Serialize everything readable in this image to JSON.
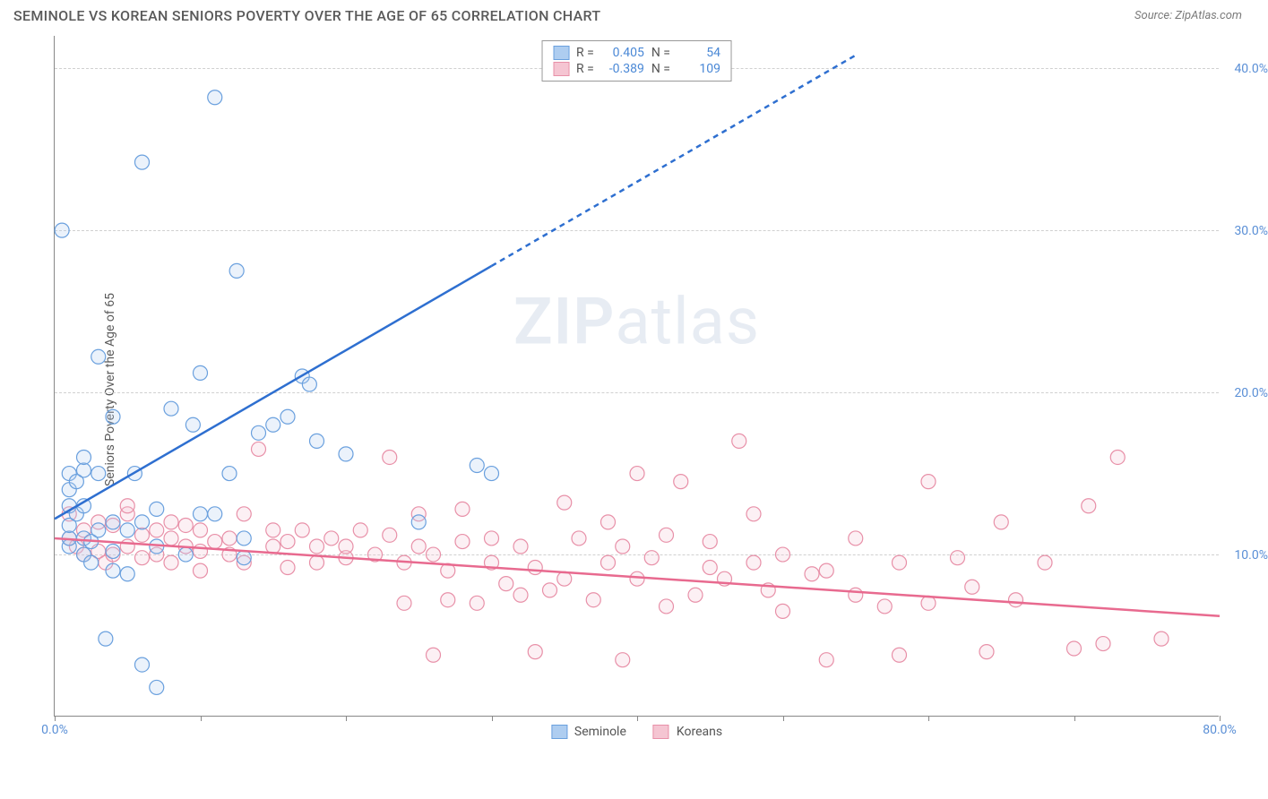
{
  "header": {
    "title": "SEMINOLE VS KOREAN SENIORS POVERTY OVER THE AGE OF 65 CORRELATION CHART",
    "source": "Source: ZipAtlas.com"
  },
  "chart": {
    "type": "scatter",
    "y_axis_label": "Seniors Poverty Over the Age of 65",
    "xlim": [
      0,
      80
    ],
    "ylim": [
      0,
      42
    ],
    "x_ticks": [
      0,
      10,
      20,
      30,
      40,
      50,
      60,
      70,
      80
    ],
    "x_tick_labels": {
      "0": "0.0%",
      "80": "80.0%"
    },
    "y_gridlines": [
      10,
      20,
      30,
      40
    ],
    "y_tick_labels": {
      "10": "10.0%",
      "20": "20.0%",
      "30": "30.0%",
      "40": "40.0%"
    },
    "background_color": "#ffffff",
    "grid_color": "#d0d0d0",
    "axis_color": "#888888",
    "label_color": "#5a5a5a",
    "tick_label_color": "#5a8fd6",
    "marker_radius": 8,
    "marker_stroke_width": 1.2,
    "marker_fill_opacity": 0.25,
    "watermark": "ZIPatlas"
  },
  "series": {
    "seminole": {
      "label": "Seminole",
      "color_stroke": "#6aa0de",
      "color_fill": "#aecdf0",
      "trend_color": "#2e6fd0",
      "trend_width": 2.5,
      "trend_start": [
        0,
        12.2
      ],
      "trend_solid_end": [
        30,
        27.8
      ],
      "trend_dash_end": [
        55,
        40.8
      ],
      "stats": {
        "R": "0.405",
        "N": "54"
      },
      "points": [
        [
          0.5,
          30.0
        ],
        [
          1,
          10.5
        ],
        [
          1,
          11
        ],
        [
          1,
          11.8
        ],
        [
          1,
          14
        ],
        [
          1,
          15
        ],
        [
          1,
          13
        ],
        [
          1.5,
          12.5
        ],
        [
          1.5,
          14.5
        ],
        [
          2,
          10
        ],
        [
          2,
          11
        ],
        [
          2,
          13
        ],
        [
          2,
          15.2
        ],
        [
          2,
          16
        ],
        [
          2.5,
          9.5
        ],
        [
          2.5,
          10.8
        ],
        [
          3,
          11.5
        ],
        [
          3,
          15
        ],
        [
          3,
          22.2
        ],
        [
          3.5,
          4.8
        ],
        [
          4,
          9
        ],
        [
          4,
          10.2
        ],
        [
          4,
          12
        ],
        [
          4,
          18.5
        ],
        [
          5,
          8.8
        ],
        [
          5,
          11.5
        ],
        [
          5.5,
          15
        ],
        [
          6,
          3.2
        ],
        [
          6,
          12
        ],
        [
          6,
          34.2
        ],
        [
          7,
          1.8
        ],
        [
          7,
          10.5
        ],
        [
          7,
          12.8
        ],
        [
          8,
          19
        ],
        [
          9,
          10
        ],
        [
          9.5,
          18
        ],
        [
          10,
          12.5
        ],
        [
          10,
          21.2
        ],
        [
          11,
          12.5
        ],
        [
          11,
          38.2
        ],
        [
          12,
          15
        ],
        [
          12.5,
          27.5
        ],
        [
          13,
          9.8
        ],
        [
          13,
          11
        ],
        [
          14,
          17.5
        ],
        [
          15,
          18
        ],
        [
          16,
          18.5
        ],
        [
          17,
          21
        ],
        [
          17.5,
          20.5
        ],
        [
          18,
          17
        ],
        [
          20,
          16.2
        ],
        [
          25,
          12
        ],
        [
          29,
          15.5
        ],
        [
          30,
          15
        ]
      ]
    },
    "koreans": {
      "label": "Koreans",
      "color_stroke": "#e890a8",
      "color_fill": "#f5c5d2",
      "trend_color": "#e86a8f",
      "trend_width": 2.5,
      "trend_start": [
        0,
        11.0
      ],
      "trend_end": [
        80,
        6.2
      ],
      "stats": {
        "R": "-0.389",
        "N": "109"
      },
      "points": [
        [
          1,
          11
        ],
        [
          1,
          12.5
        ],
        [
          1.5,
          10.5
        ],
        [
          2,
          10
        ],
        [
          2,
          11.5
        ],
        [
          3,
          10.2
        ],
        [
          3,
          12
        ],
        [
          3.5,
          9.5
        ],
        [
          4,
          10
        ],
        [
          4,
          11.8
        ],
        [
          5,
          10.5
        ],
        [
          5,
          12.5
        ],
        [
          5,
          13
        ],
        [
          6,
          9.8
        ],
        [
          6,
          11.2
        ],
        [
          7,
          10
        ],
        [
          7,
          11.5
        ],
        [
          8,
          9.5
        ],
        [
          8,
          11
        ],
        [
          8,
          12
        ],
        [
          9,
          10.5
        ],
        [
          9,
          11.8
        ],
        [
          10,
          9
        ],
        [
          10,
          10.2
        ],
        [
          10,
          11.5
        ],
        [
          11,
          10.8
        ],
        [
          12,
          10
        ],
        [
          12,
          11
        ],
        [
          13,
          9.5
        ],
        [
          13,
          12.5
        ],
        [
          14,
          16.5
        ],
        [
          15,
          10.5
        ],
        [
          15,
          11.5
        ],
        [
          16,
          9.2
        ],
        [
          16,
          10.8
        ],
        [
          17,
          11.5
        ],
        [
          18,
          9.5
        ],
        [
          18,
          10.5
        ],
        [
          19,
          11
        ],
        [
          20,
          9.8
        ],
        [
          20,
          10.5
        ],
        [
          21,
          11.5
        ],
        [
          22,
          10
        ],
        [
          23,
          16
        ],
        [
          23,
          11.2
        ],
        [
          24,
          7
        ],
        [
          24,
          9.5
        ],
        [
          25,
          10.5
        ],
        [
          25,
          12.5
        ],
        [
          26,
          3.8
        ],
        [
          26,
          10
        ],
        [
          27,
          7.2
        ],
        [
          27,
          9
        ],
        [
          28,
          10.8
        ],
        [
          28,
          12.8
        ],
        [
          29,
          7
        ],
        [
          30,
          9.5
        ],
        [
          30,
          11
        ],
        [
          31,
          8.2
        ],
        [
          32,
          7.5
        ],
        [
          32,
          10.5
        ],
        [
          33,
          4
        ],
        [
          33,
          9.2
        ],
        [
          34,
          7.8
        ],
        [
          35,
          8.5
        ],
        [
          35,
          13.2
        ],
        [
          36,
          11
        ],
        [
          37,
          7.2
        ],
        [
          38,
          9.5
        ],
        [
          38,
          12
        ],
        [
          39,
          3.5
        ],
        [
          39,
          10.5
        ],
        [
          40,
          8.5
        ],
        [
          40,
          15
        ],
        [
          41,
          9.8
        ],
        [
          42,
          6.8
        ],
        [
          42,
          11.2
        ],
        [
          43,
          14.5
        ],
        [
          44,
          7.5
        ],
        [
          45,
          9.2
        ],
        [
          45,
          10.8
        ],
        [
          46,
          8.5
        ],
        [
          47,
          17
        ],
        [
          48,
          9.5
        ],
        [
          48,
          12.5
        ],
        [
          49,
          7.8
        ],
        [
          50,
          6.5
        ],
        [
          50,
          10
        ],
        [
          52,
          8.8
        ],
        [
          53,
          3.5
        ],
        [
          53,
          9
        ],
        [
          55,
          7.5
        ],
        [
          55,
          11
        ],
        [
          57,
          6.8
        ],
        [
          58,
          3.8
        ],
        [
          58,
          9.5
        ],
        [
          60,
          7
        ],
        [
          60,
          14.5
        ],
        [
          62,
          9.8
        ],
        [
          63,
          8
        ],
        [
          64,
          4
        ],
        [
          65,
          12
        ],
        [
          66,
          7.2
        ],
        [
          68,
          9.5
        ],
        [
          70,
          4.2
        ],
        [
          71,
          13
        ],
        [
          72,
          4.5
        ],
        [
          73,
          16
        ],
        [
          76,
          4.8
        ]
      ]
    }
  },
  "stats_box": {
    "r_label": "R =",
    "n_label": "N ="
  },
  "legend": {
    "position": "bottom-center"
  }
}
